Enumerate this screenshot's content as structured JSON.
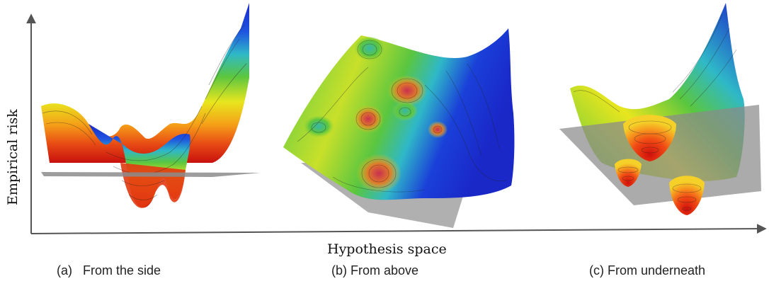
{
  "figure": {
    "axes": {
      "y_label": "Empirical risk",
      "x_label": "Hypothesis space"
    },
    "panels": [
      {
        "caption": "(a)   From the side"
      },
      {
        "caption": "(b) From above"
      },
      {
        "caption": "(c) From underneath"
      }
    ]
  },
  "colors": {
    "surface_low": "#d81a12",
    "surface_mid": "#f4ea1a",
    "surface_green": "#5ac640",
    "surface_cyan": "#2fb8c8",
    "surface_high": "#1a28c8",
    "plane": "#9a9a9a",
    "axis": "#555555"
  }
}
